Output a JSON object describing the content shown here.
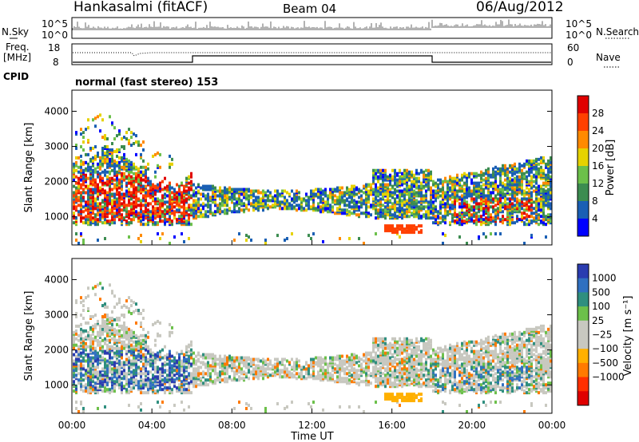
{
  "header": {
    "station": "Hankasalmi (fitACF)",
    "beam": "Beam 04",
    "date": "06/Aug/2012"
  },
  "status_panels": {
    "noise_left_label": "N.Sky",
    "noise_right_label": "N.Search",
    "noise_left_ticks": [
      "10^5",
      "10^0"
    ],
    "noise_right_ticks": [
      "10^5",
      "10^0"
    ],
    "freq_label_line1": "Freq.",
    "freq_label_line2": "[MHz]",
    "freq_ticks": [
      "18",
      "8"
    ],
    "nave_label": "Nave",
    "nave_ticks": [
      "60",
      "0"
    ],
    "cpid_label": "CPID",
    "cpid_text": "normal (fast stereo) 153"
  },
  "colors": {
    "power": [
      "#0000ff",
      "#1a5fb4",
      "#3c8c50",
      "#6cc04a",
      "#e6d200",
      "#ff8a00",
      "#ff4000",
      "#e00000"
    ],
    "velocity": [
      "#2a3cb0",
      "#3070c0",
      "#2f8f7f",
      "#6cc04a",
      "#c8c8c0",
      "#c8c8c0",
      "#ffb000",
      "#ff7a00",
      "#ff3000",
      "#e00000"
    ]
  },
  "chart_data": [
    {
      "type": "heatmap",
      "name": "power",
      "ylabel": "Slant Range [km]",
      "y_ticks": [
        1000,
        2000,
        3000,
        4000
      ],
      "ylim": [
        200,
        4600
      ],
      "x_ticks": [
        "00:00",
        "04:00",
        "08:00",
        "12:00",
        "16:00",
        "20:00",
        "00:00"
      ],
      "xlim_hours": [
        0,
        24
      ],
      "colorbar_label": "Power [dB]",
      "colorbar_ticks": [
        "4",
        "8",
        "12",
        "16",
        "20",
        "24",
        "28"
      ]
    },
    {
      "type": "heatmap",
      "name": "velocity",
      "ylabel": "Slant Range [km]",
      "y_ticks": [
        1000,
        2000,
        3000,
        4000
      ],
      "ylim": [
        200,
        4600
      ],
      "x_ticks": [
        "00:00",
        "04:00",
        "08:00",
        "12:00",
        "16:00",
        "20:00",
        "00:00"
      ],
      "xlim_hours": [
        0,
        24
      ],
      "xlabel": "Time UT",
      "colorbar_label": "Velocity [m s⁻¹]",
      "colorbar_ticks": [
        "1000",
        "500",
        "100",
        "25",
        "−25",
        "−100",
        "−500",
        "−1000"
      ]
    }
  ]
}
